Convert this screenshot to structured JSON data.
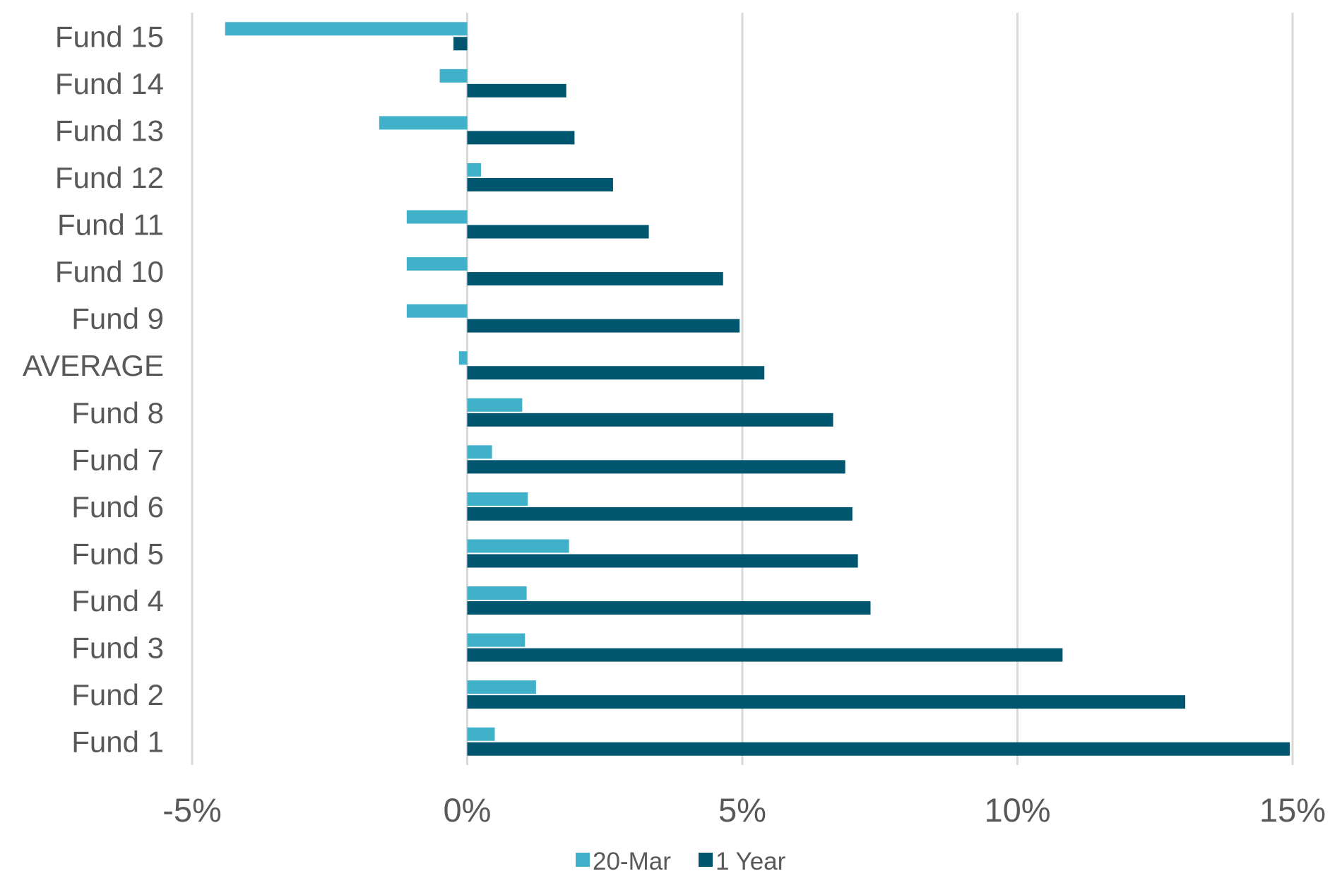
{
  "chart_data": {
    "type": "bar",
    "orientation": "horizontal",
    "categories": [
      "Fund 15",
      "Fund 14",
      "Fund 13",
      "Fund 12",
      "Fund 11",
      "Fund 10",
      "Fund 9",
      "AVERAGE",
      "Fund 8",
      "Fund 7",
      "Fund 6",
      "Fund 5",
      "Fund 4",
      "Fund 3",
      "Fund 2",
      "Fund 1"
    ],
    "series": [
      {
        "name": "20-Mar",
        "color": "#41b0c9",
        "values": [
          -4.4,
          -0.5,
          -1.6,
          0.25,
          -1.1,
          -1.1,
          -1.1,
          -0.15,
          1.0,
          0.45,
          1.1,
          1.85,
          1.08,
          1.05,
          1.25,
          0.5
        ]
      },
      {
        "name": "1 Year",
        "color": "#00566f",
        "values": [
          -0.25,
          1.8,
          1.95,
          2.65,
          3.3,
          4.65,
          4.95,
          5.4,
          6.65,
          6.87,
          7.0,
          7.1,
          7.33,
          10.82,
          13.05,
          14.95
        ]
      }
    ],
    "xaxis": {
      "range": [
        -5,
        15
      ],
      "ticks": [
        -5,
        0,
        5,
        10,
        15
      ],
      "tick_labels": [
        "-5%",
        "0%",
        "5%",
        "10%",
        "15%"
      ]
    },
    "gridlines": "vertical",
    "legend_position": "bottom-center",
    "title": "",
    "xlabel": "",
    "ylabel": ""
  }
}
